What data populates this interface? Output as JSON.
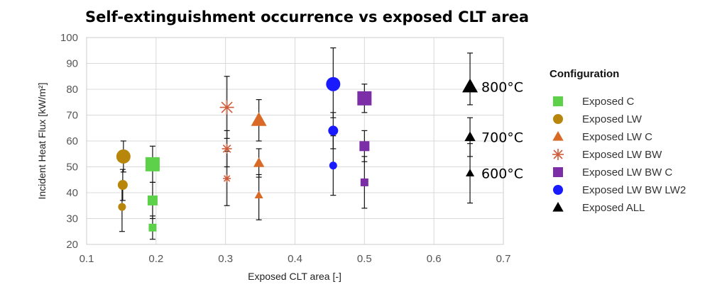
{
  "chart_data": {
    "type": "scatter",
    "title": "Self-extinguishment occurrence vs exposed CLT area",
    "xlabel": "Exposed CLT area [-]",
    "ylabel": "Incident Heat Flux [kW/m²]",
    "xlim": [
      0.1,
      0.7
    ],
    "ylim": [
      20,
      100
    ],
    "xticks": [
      "0.1",
      "0.2",
      "0.3",
      "0.4",
      "0.5",
      "0.6",
      "0.7"
    ],
    "yticks": [
      "20",
      "30",
      "40",
      "50",
      "60",
      "70",
      "80",
      "90",
      "100"
    ],
    "grid": true,
    "legend": {
      "title": "Configuration",
      "position": "right"
    },
    "series": [
      {
        "name": "Exposed C",
        "marker": "square",
        "color": "#5dd14a",
        "points": [
          {
            "x": 0.195,
            "y": 51,
            "lo": 44,
            "hi": 58
          },
          {
            "x": 0.195,
            "y": 37,
            "lo": 30,
            "hi": 44
          },
          {
            "x": 0.195,
            "y": 26.5,
            "lo": 22,
            "hi": 31
          }
        ]
      },
      {
        "name": "Exposed LW",
        "marker": "circle",
        "color": "#b8860b",
        "points": [
          {
            "x": 0.153,
            "y": 54,
            "lo": 48,
            "hi": 60
          },
          {
            "x": 0.152,
            "y": 43,
            "lo": 37,
            "hi": 49
          },
          {
            "x": 0.151,
            "y": 34.5,
            "lo": 25,
            "hi": 43
          }
        ]
      },
      {
        "name": "Exposed LW C",
        "marker": "triangle",
        "color": "#d86a25",
        "points": [
          {
            "x": 0.348,
            "y": 68,
            "lo": 60,
            "hi": 76
          },
          {
            "x": 0.348,
            "y": 51.5,
            "lo": 46,
            "hi": 57
          },
          {
            "x": 0.348,
            "y": 39,
            "lo": 29.5,
            "hi": 47
          }
        ]
      },
      {
        "name": "Exposed LW BW",
        "marker": "asterisk",
        "color": "#cd5c3a",
        "points": [
          {
            "x": 0.302,
            "y": 73,
            "lo": 61,
            "hi": 85
          },
          {
            "x": 0.302,
            "y": 57,
            "lo": 50,
            "hi": 64
          },
          {
            "x": 0.302,
            "y": 45.5,
            "lo": 35,
            "hi": 56
          }
        ]
      },
      {
        "name": "Exposed LW BW C",
        "marker": "square",
        "color": "#7b2ea6",
        "points": [
          {
            "x": 0.5,
            "y": 76.5,
            "lo": 71,
            "hi": 82
          },
          {
            "x": 0.5,
            "y": 58,
            "lo": 52,
            "hi": 64
          },
          {
            "x": 0.5,
            "y": 44,
            "lo": 34,
            "hi": 54
          }
        ]
      },
      {
        "name": "Exposed LW BW LW2",
        "marker": "circle",
        "color": "#1a1aff",
        "points": [
          {
            "x": 0.455,
            "y": 82,
            "lo": 69,
            "hi": 96
          },
          {
            "x": 0.455,
            "y": 64,
            "lo": 57,
            "hi": 71
          },
          {
            "x": 0.455,
            "y": 50.5,
            "lo": 39,
            "hi": 62
          }
        ]
      },
      {
        "name": "Exposed ALL",
        "marker": "triangle",
        "color": "#000000",
        "points": [
          {
            "x": 0.652,
            "y": 81,
            "lo": 74,
            "hi": 94
          },
          {
            "x": 0.652,
            "y": 61.5,
            "lo": 54,
            "hi": 69
          },
          {
            "x": 0.652,
            "y": 47.5,
            "lo": 36,
            "hi": 59
          }
        ]
      }
    ],
    "annotations": [
      {
        "text": "800°C",
        "x": 0.652,
        "y": 81
      },
      {
        "text": "700°C",
        "x": 0.652,
        "y": 61.5
      },
      {
        "text": "600°C",
        "x": 0.652,
        "y": 47.5
      }
    ]
  }
}
